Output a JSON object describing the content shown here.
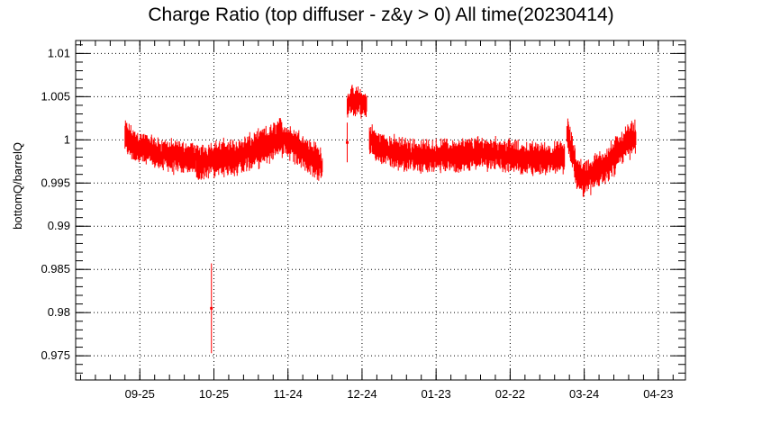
{
  "chart_data": {
    "type": "scatter",
    "title": "Charge Ratio (top diffuser - z&y > 0) All time(20230414)",
    "ylabel": "bottomQ/barrelQ",
    "xlabel": "",
    "ylim": [
      0.9722,
      1.0115
    ],
    "grid": true,
    "y_ticks": [
      {
        "value": 0.975,
        "label": "0.975"
      },
      {
        "value": 0.98,
        "label": "0.98"
      },
      {
        "value": 0.985,
        "label": "0.985"
      },
      {
        "value": 0.99,
        "label": "0.99"
      },
      {
        "value": 0.995,
        "label": "0.995"
      },
      {
        "value": 1.0,
        "label": "1"
      },
      {
        "value": 1.005,
        "label": "1.005"
      },
      {
        "value": 1.01,
        "label": "1.01"
      }
    ],
    "x_ticks": [
      {
        "date": "2022-09-25",
        "label": "09-25"
      },
      {
        "date": "2022-10-25",
        "label": "10-25"
      },
      {
        "date": "2022-11-24",
        "label": "11-24"
      },
      {
        "date": "2022-12-24",
        "label": "12-24"
      },
      {
        "date": "2023-01-23",
        "label": "01-23"
      },
      {
        "date": "2023-02-22",
        "label": "02-22"
      },
      {
        "date": "2023-03-24",
        "label": "03-24"
      },
      {
        "date": "2023-04-23",
        "label": "04-23"
      }
    ],
    "xlim": [
      "2022-08-30",
      "2023-05-04"
    ],
    "series": [
      {
        "color": "#ff0000",
        "segments": [
          {
            "x": [
              "2022-09-19",
              "2022-09-22",
              "2022-09-25",
              "2022-09-28",
              "2022-10-01",
              "2022-10-04",
              "2022-10-07",
              "2022-10-10",
              "2022-10-13",
              "2022-10-16",
              "2022-10-18"
            ],
            "y": [
              1.0005,
              0.9995,
              0.9992,
              0.9988,
              0.9985,
              0.9983,
              0.9982,
              0.998,
              0.9979,
              0.9978,
              0.9978
            ],
            "spread": 0.0017
          },
          {
            "x": [
              "2022-10-18",
              "2022-10-21",
              "2022-10-24",
              "2022-10-27",
              "2022-10-30",
              "2022-11-02",
              "2022-11-05",
              "2022-11-08",
              "2022-11-11",
              "2022-11-14",
              "2022-11-17",
              "2022-11-20",
              "2022-11-23",
              "2022-11-26",
              "2022-11-29",
              "2022-12-02",
              "2022-12-05",
              "2022-12-08"
            ],
            "y": [
              0.9972,
              0.9975,
              0.9978,
              0.9978,
              0.998,
              0.998,
              0.9982,
              0.9985,
              0.9988,
              0.9992,
              0.9996,
              1.0005,
              1.0,
              0.9995,
              0.999,
              0.9982,
              0.9976,
              0.997
            ],
            "spread": 0.0019
          },
          {
            "x": [
              "2022-12-18",
              "2022-12-20",
              "2022-12-22",
              "2022-12-24",
              "2022-12-26"
            ],
            "y": [
              1.004,
              1.0045,
              1.0045,
              1.0042,
              1.0038
            ],
            "spread": 0.0015
          },
          {
            "x": [
              "2022-12-27",
              "2022-12-30",
              "2023-01-03",
              "2023-01-07",
              "2023-01-11",
              "2023-01-15",
              "2023-01-19",
              "2023-01-23",
              "2023-01-27",
              "2023-01-31",
              "2023-02-04",
              "2023-02-08",
              "2023-02-12",
              "2023-02-16",
              "2023-02-20",
              "2023-02-24",
              "2023-02-28",
              "2023-03-04",
              "2023-03-08",
              "2023-03-12",
              "2023-03-16"
            ],
            "y": [
              1.0002,
              0.9992,
              0.9988,
              0.9985,
              0.9983,
              0.9982,
              0.9981,
              0.9981,
              0.9982,
              0.9982,
              0.9983,
              0.9984,
              0.9985,
              0.9984,
              0.9983,
              0.998,
              0.9978,
              0.9979,
              0.9978,
              0.9978,
              0.998
            ],
            "spread": 0.0017
          },
          {
            "x": [
              "2023-03-17",
              "2023-03-19",
              "2023-03-21",
              "2023-03-24",
              "2023-03-27",
              "2023-03-30",
              "2023-04-02",
              "2023-04-05",
              "2023-04-08",
              "2023-04-11",
              "2023-04-14"
            ],
            "y": [
              1.001,
              0.9985,
              0.9962,
              0.9955,
              0.996,
              0.9965,
              0.9972,
              0.998,
              0.999,
              0.9997,
              1.0004
            ],
            "spread": 0.0019
          }
        ],
        "outliers": [
          {
            "x": "2022-10-24",
            "y": 0.9805,
            "err": 0.0052
          },
          {
            "x": "2022-12-18",
            "y": 0.9997,
            "err": 0.0023
          }
        ]
      }
    ]
  }
}
